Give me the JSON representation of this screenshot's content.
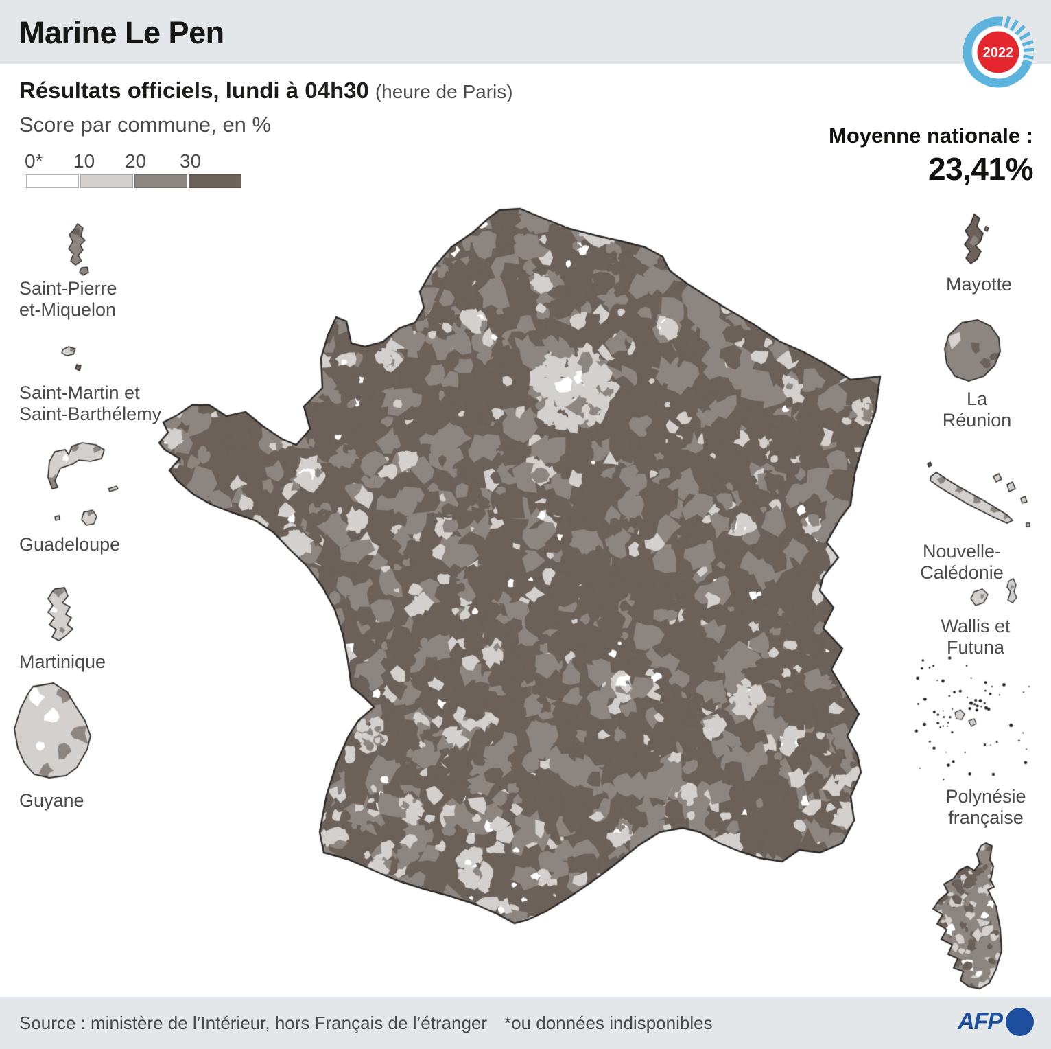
{
  "title": "Marine Le Pen",
  "badge": {
    "year": "2022"
  },
  "subtitle": {
    "bold": "Résultats officiels, lundi à 04h30",
    "light": "(heure de Paris)"
  },
  "score_label": "Score par commune, en %",
  "legend": {
    "ticks": [
      "0*",
      "10",
      "20",
      "30"
    ]
  },
  "average": {
    "label": "Moyenne nationale :",
    "value": "23,41%"
  },
  "territories": {
    "saint_pierre": "Saint-Pierre\net-Miquelon",
    "saint_martin": "Saint-Martin et\nSaint-Barthélemy",
    "guadeloupe": "Guadeloupe",
    "martinique": "Martinique",
    "guyane": "Guyane",
    "mayotte": "Mayotte",
    "la_reunion": "La Réunion",
    "nouvelle_caledonie": "Nouvelle-Calédonie",
    "wallis": "Wallis et Futuna",
    "polynesie": "Polynésie\nfrançaise"
  },
  "footer": {
    "source": "Source : ministère de l’Intérieur, hors Français de l’étranger",
    "note": "*ou données indisponibles",
    "agency": "AFP"
  },
  "map_palette": {
    "bin0": "#ffffff",
    "bin10": "#d3d0cd",
    "bin20": "#8d8680",
    "bin30": "#6b6159",
    "outline": "#2b2826"
  },
  "brand_colors": {
    "badge_blue": "#5cb4dc",
    "badge_red": "#e4272e",
    "badge_text": "#ffffff",
    "afp_blue": "#1d4f9e",
    "band_gray": "#e4e7e9"
  }
}
